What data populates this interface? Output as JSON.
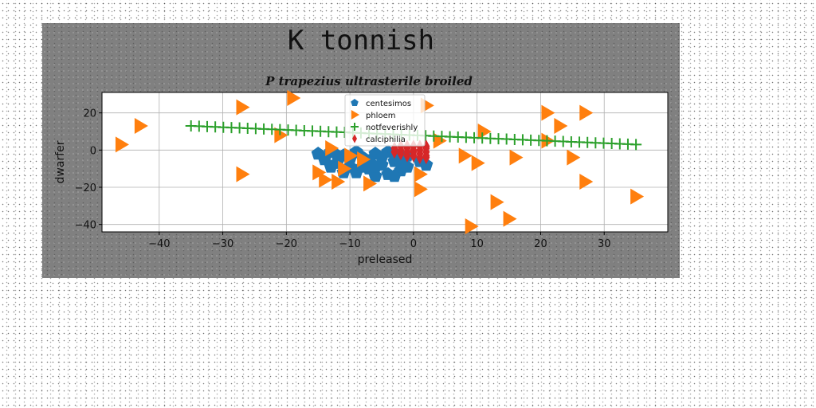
{
  "figure": {
    "suptitle": "K tonnish"
  },
  "chart_data": {
    "type": "scatter",
    "title": "P trapezius ultrasterile broiled",
    "xlabel": "preleased",
    "ylabel": "dwarfer",
    "xlim": [
      -49,
      40
    ],
    "ylim": [
      -44,
      31
    ],
    "xticks": [
      -40,
      -30,
      -20,
      -10,
      0,
      10,
      20,
      30
    ],
    "yticks": [
      -40,
      -20,
      0,
      20
    ],
    "grid": true,
    "legend_position": "top-center",
    "series": [
      {
        "name": "centesimos",
        "marker": "pentagon",
        "color": "#1f77b4",
        "points": [
          [
            -15,
            -2
          ],
          [
            -14,
            -5
          ],
          [
            -13,
            -1
          ],
          [
            -12,
            -7
          ],
          [
            -11,
            -3
          ],
          [
            -10,
            -9
          ],
          [
            -9,
            -12
          ],
          [
            -8,
            -4
          ],
          [
            -7,
            -10
          ],
          [
            -6,
            -2
          ],
          [
            -5,
            -8
          ],
          [
            -4,
            -13
          ],
          [
            -3,
            -6
          ],
          [
            -2,
            -11
          ],
          [
            -1,
            -3
          ],
          [
            -4,
            -1
          ],
          [
            -6,
            -14
          ],
          [
            -9,
            -1
          ],
          [
            -11,
            -12
          ],
          [
            -3,
            -14
          ],
          [
            -13,
            -9
          ],
          [
            -7,
            -6
          ],
          [
            -5,
            -4
          ],
          [
            -2,
            -7
          ],
          [
            -10,
            -5
          ],
          [
            -8,
            -9
          ],
          [
            -12,
            -3
          ],
          [
            -1,
            -9
          ],
          [
            1,
            -6
          ],
          [
            2,
            -8
          ],
          [
            -3,
            -2
          ],
          [
            -6,
            -9
          ]
        ]
      },
      {
        "name": "phloem",
        "marker": "triangle-right",
        "color": "#ff7f0e",
        "points": [
          [
            -46,
            3
          ],
          [
            -43,
            13
          ],
          [
            -27,
            23
          ],
          [
            -27,
            -13
          ],
          [
            -19,
            28
          ],
          [
            -21,
            8
          ],
          [
            -15,
            -12
          ],
          [
            -14,
            -16
          ],
          [
            -12,
            -17
          ],
          [
            -11,
            -10
          ],
          [
            -7,
            -18
          ],
          [
            -8,
            -5
          ],
          [
            -13,
            1
          ],
          [
            -10,
            -3
          ],
          [
            2,
            24
          ],
          [
            1,
            -13
          ],
          [
            1,
            -21
          ],
          [
            8,
            -3
          ],
          [
            10,
            -7
          ],
          [
            11,
            10
          ],
          [
            13,
            -28
          ],
          [
            15,
            -37
          ],
          [
            16,
            -4
          ],
          [
            21,
            20
          ],
          [
            21,
            5
          ],
          [
            23,
            13
          ],
          [
            25,
            -4
          ],
          [
            27,
            20
          ],
          [
            27,
            -17
          ],
          [
            9,
            -41
          ],
          [
            35,
            -25
          ],
          [
            4,
            5
          ]
        ]
      },
      {
        "name": "notfeverishly",
        "marker": "plus",
        "color": "#2ca02c",
        "line": {
          "from": [
            -35,
            13
          ],
          "to": [
            35,
            3
          ],
          "count": 56
        }
      },
      {
        "name": "calciphilia",
        "marker": "diamond",
        "color": "#d62728",
        "points": [
          [
            -2,
            0
          ],
          [
            -1,
            1
          ],
          [
            0,
            -1
          ],
          [
            1,
            0
          ],
          [
            2,
            1
          ],
          [
            -2,
            -2
          ],
          [
            -1,
            -3
          ],
          [
            0,
            -3
          ],
          [
            1,
            -2
          ],
          [
            2,
            -1
          ],
          [
            -2,
            2
          ],
          [
            -1,
            2
          ],
          [
            0,
            2
          ],
          [
            1,
            2
          ],
          [
            2,
            2
          ],
          [
            2,
            -3
          ],
          [
            -3,
            -1
          ],
          [
            -3,
            1
          ],
          [
            0,
            0
          ],
          [
            1,
            -4
          ],
          [
            -1,
            -1
          ],
          [
            2,
            -4
          ]
        ]
      }
    ]
  }
}
